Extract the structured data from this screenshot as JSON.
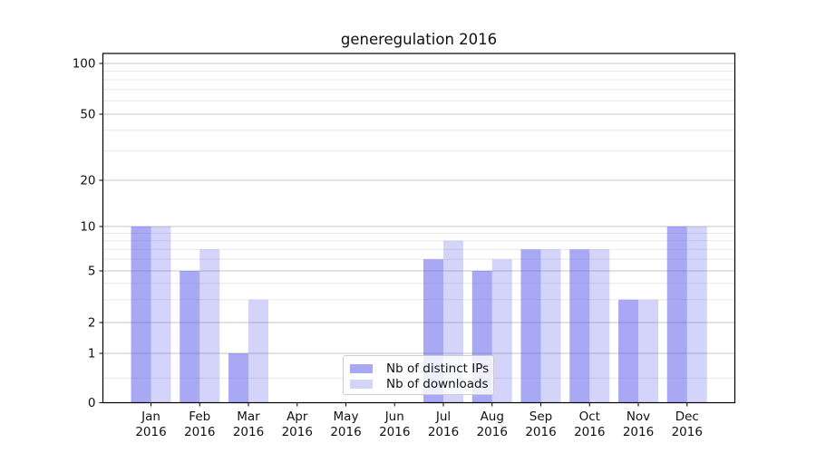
{
  "chart_data": {
    "type": "bar",
    "title": "generegulation 2016",
    "months": [
      "Jan",
      "Feb",
      "Mar",
      "Apr",
      "May",
      "Jun",
      "Jul",
      "Aug",
      "Sep",
      "Oct",
      "Nov",
      "Dec"
    ],
    "year_label": "2016",
    "categories": [
      "Jan 2016",
      "Feb 2016",
      "Mar 2016",
      "Apr 2016",
      "May 2016",
      "Jun 2016",
      "Jul 2016",
      "Aug 2016",
      "Sep 2016",
      "Oct 2016",
      "Nov 2016",
      "Dec 2016"
    ],
    "series": [
      {
        "name": "Nb of distinct IPs",
        "color": "#6161eb",
        "fill_opacity": 0.55,
        "values": [
          10,
          5,
          1,
          0,
          0,
          0,
          6,
          5,
          7,
          7,
          3,
          10
        ]
      },
      {
        "name": "Nb of downloads",
        "color": "#6161eb",
        "fill_opacity": 0.27,
        "values": [
          10,
          7,
          3,
          0,
          0,
          0,
          8,
          6,
          7,
          7,
          3,
          10
        ]
      }
    ],
    "yaxis": {
      "scale": "symlog-like",
      "major_ticks": [
        0,
        1,
        2,
        5,
        10,
        20,
        50,
        100
      ],
      "minor_ticks": [
        0.5,
        3,
        4,
        6,
        7,
        8,
        9,
        30,
        40,
        60,
        70,
        80,
        90
      ],
      "ylim": [
        0,
        120
      ]
    },
    "xlabel": "",
    "ylabel": "",
    "grid": "on",
    "legend_position": "lower-center"
  }
}
